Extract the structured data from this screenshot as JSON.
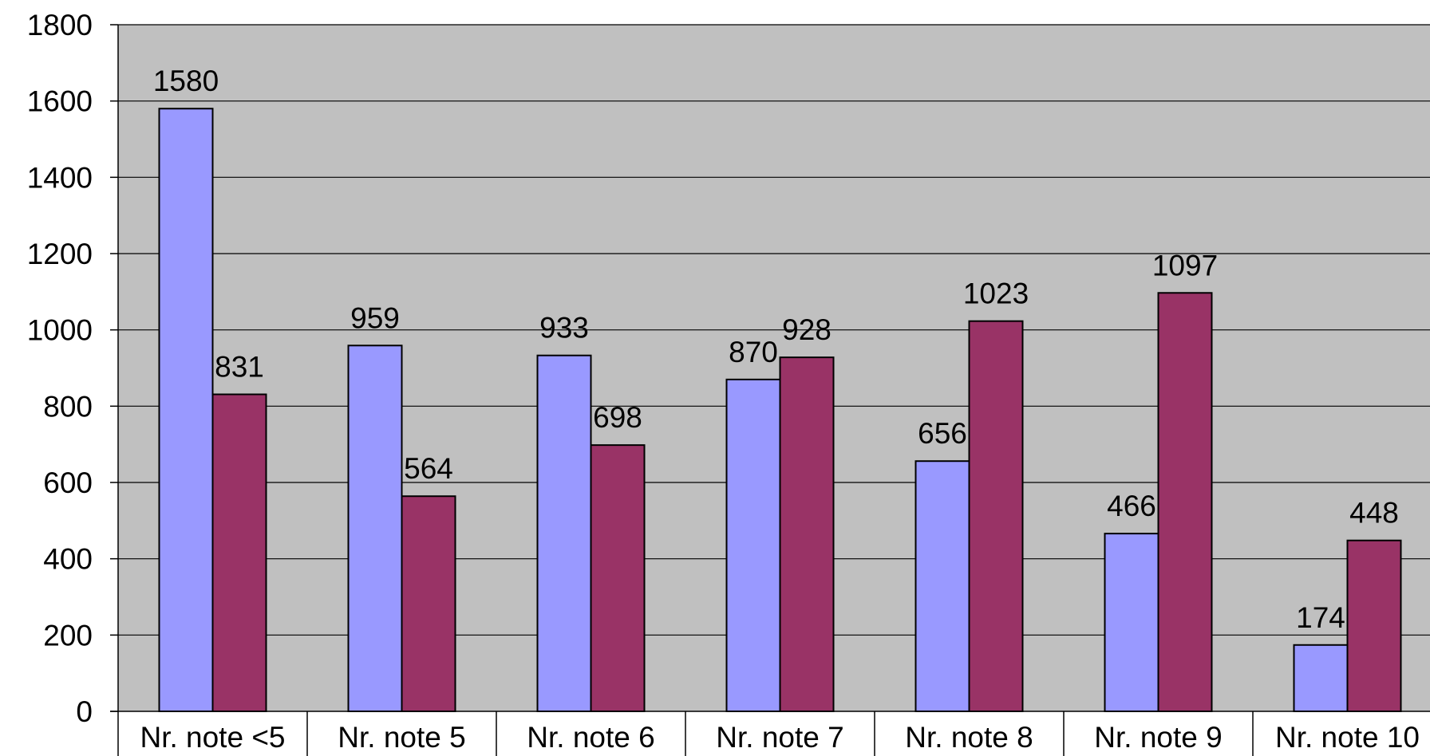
{
  "chart_data": {
    "type": "bar",
    "title": "",
    "xlabel": "",
    "ylabel": "",
    "categories": [
      "Nr. note <5",
      "Nr. note 5",
      "Nr. note 6",
      "Nr. note 7",
      "Nr. note 8",
      "Nr. note 9",
      "Nr. note 10"
    ],
    "series": [
      {
        "values": [
          1580,
          959,
          933,
          870,
          656,
          466,
          174
        ],
        "color": "#9999ff"
      },
      {
        "values": [
          831,
          564,
          698,
          928,
          1023,
          1097,
          448
        ],
        "color": "#993366"
      }
    ],
    "ylim": [
      0,
      1800
    ],
    "yticks": [
      0,
      200,
      400,
      600,
      800,
      1000,
      1200,
      1400,
      1600,
      1800
    ],
    "grid": true,
    "plot_background": "#c0c0c0",
    "data_labels": true
  }
}
